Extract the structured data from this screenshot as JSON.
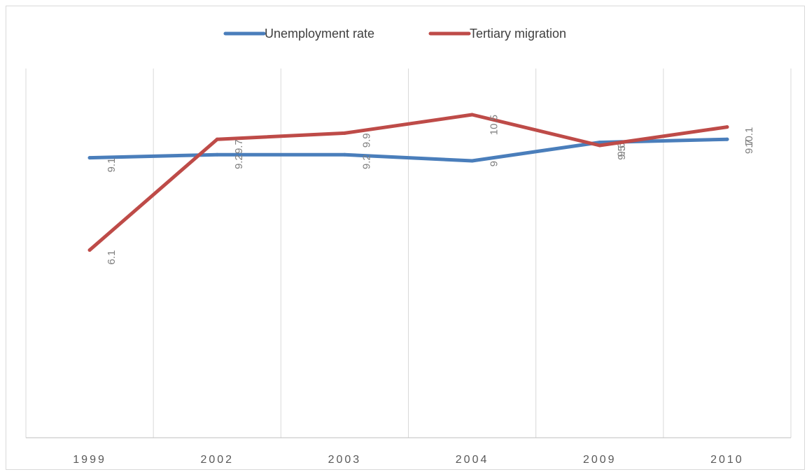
{
  "chart_data": {
    "type": "line",
    "categories": [
      "1999",
      "2002",
      "2003",
      "2004",
      "2009",
      "2010"
    ],
    "series": [
      {
        "name": "Unemployment rate",
        "color": "#4a7ebb",
        "values": [
          9.1,
          9.2,
          9.2,
          9.0,
          9.6,
          9.7
        ]
      },
      {
        "name": "Tertiary migration",
        "color": "#be4b48",
        "values": [
          6.1,
          9.7,
          9.9,
          10.5,
          9.5,
          10.1
        ]
      }
    ],
    "data_labels": {
      "Unemployment rate": [
        "9.1",
        "9.2",
        "9.2",
        "9",
        "9.6",
        "9.7"
      ],
      "Tertiary migration": [
        "6.1",
        "9.7",
        "9.9",
        "10.5",
        "9.5",
        "10.1"
      ]
    },
    "ylim": [
      0,
      12
    ],
    "grid": "vertical",
    "legend_position": "top"
  }
}
